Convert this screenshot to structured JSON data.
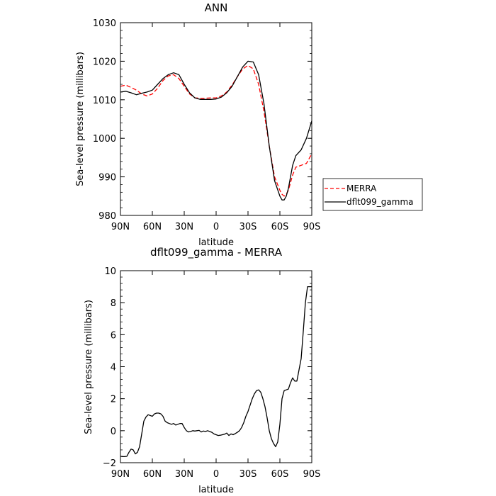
{
  "chart_data": [
    {
      "type": "line",
      "title": "ANN",
      "xlabel": "latitude",
      "ylabel": "Sea-level pressure (millibars)",
      "xlim": [
        90,
        -90
      ],
      "ylim": [
        980,
        1030
      ],
      "x_ticks": [
        {
          "value": 90,
          "label": "90N"
        },
        {
          "value": 60,
          "label": "60N"
        },
        {
          "value": 30,
          "label": "30N"
        },
        {
          "value": 0,
          "label": "0"
        },
        {
          "value": -30,
          "label": "30S"
        },
        {
          "value": -60,
          "label": "60S"
        },
        {
          "value": -90,
          "label": "90S"
        }
      ],
      "y_ticks": [
        {
          "value": 980,
          "label": "980"
        },
        {
          "value": 990,
          "label": "990"
        },
        {
          "value": 1000,
          "label": "1000"
        },
        {
          "value": 1010,
          "label": "1010"
        },
        {
          "value": 1020,
          "label": "1020"
        },
        {
          "value": 1030,
          "label": "1030"
        }
      ],
      "legend_position": "right",
      "series": [
        {
          "name": "MERRA",
          "color": "#ff0000",
          "dashed": true,
          "x": [
            90,
            85,
            80,
            75,
            70,
            65,
            60,
            55,
            50,
            45,
            40,
            35,
            30,
            25,
            20,
            15,
            10,
            5,
            0,
            -5,
            -10,
            -15,
            -20,
            -25,
            -30,
            -35,
            -40,
            -45,
            -50,
            -55,
            -60,
            -62,
            -64,
            -66,
            -68,
            -70,
            -72,
            -75,
            -80,
            -85,
            -90
          ],
          "y": [
            1013.5,
            1013.8,
            1013.2,
            1012.5,
            1011.5,
            1011.0,
            1011.5,
            1013.0,
            1015.0,
            1016.2,
            1016.5,
            1015.5,
            1013.5,
            1011.5,
            1010.5,
            1010.4,
            1010.4,
            1010.5,
            1010.5,
            1011.0,
            1012.0,
            1013.8,
            1016.0,
            1018.0,
            1018.9,
            1018.0,
            1014.0,
            1007.0,
            998.0,
            990.0,
            986.5,
            985.5,
            985.0,
            985.5,
            986.5,
            988.5,
            990.5,
            992.5,
            993.0,
            993.5,
            996.0
          ]
        },
        {
          "name": "dflt099_gamma",
          "color": "#000000",
          "dashed": false,
          "x": [
            90,
            85,
            80,
            75,
            70,
            65,
            60,
            55,
            50,
            45,
            40,
            35,
            30,
            25,
            20,
            15,
            10,
            5,
            0,
            -5,
            -10,
            -15,
            -20,
            -25,
            -30,
            -35,
            -40,
            -45,
            -50,
            -55,
            -60,
            -62,
            -64,
            -66,
            -68,
            -70,
            -72,
            -75,
            -80,
            -85,
            -90
          ],
          "y": [
            1012.0,
            1012.2,
            1011.8,
            1011.3,
            1011.7,
            1012.0,
            1012.5,
            1014.0,
            1015.5,
            1016.5,
            1017.0,
            1016.5,
            1014.0,
            1011.8,
            1010.5,
            1010.1,
            1010.1,
            1010.1,
            1010.2,
            1010.7,
            1011.8,
            1013.5,
            1016.0,
            1018.5,
            1020.0,
            1019.8,
            1016.5,
            1009.0,
            998.0,
            989.0,
            985.0,
            984.0,
            984.0,
            985.0,
            987.0,
            990.0,
            993.0,
            995.5,
            997.0,
            1000.0,
            1004.5
          ]
        }
      ]
    },
    {
      "type": "line",
      "title": "dflt099_gamma - MERRA",
      "xlabel": "latitude",
      "ylabel": "Sea-level pressure (millibars)",
      "xlim": [
        90,
        -90
      ],
      "ylim": [
        -2,
        10
      ],
      "x_ticks": [
        {
          "value": 90,
          "label": "90N"
        },
        {
          "value": 60,
          "label": "60N"
        },
        {
          "value": 30,
          "label": "30N"
        },
        {
          "value": 0,
          "label": "0"
        },
        {
          "value": -30,
          "label": "30S"
        },
        {
          "value": -60,
          "label": "60S"
        },
        {
          "value": -90,
          "label": "90S"
        }
      ],
      "y_ticks": [
        {
          "value": -2,
          "label": "−2"
        },
        {
          "value": 0,
          "label": "0"
        },
        {
          "value": 2,
          "label": "2"
        },
        {
          "value": 4,
          "label": "4"
        },
        {
          "value": 6,
          "label": "6"
        },
        {
          "value": 8,
          "label": "8"
        },
        {
          "value": 10,
          "label": "10"
        }
      ],
      "series": [
        {
          "color": "#000000",
          "dashed": false,
          "x": [
            90,
            88,
            86,
            84,
            82,
            80,
            78,
            76,
            74,
            72,
            70,
            68,
            66,
            64,
            62,
            60,
            58,
            56,
            54,
            52,
            50,
            48,
            46,
            44,
            42,
            40,
            38,
            36,
            34,
            32,
            30,
            28,
            26,
            24,
            22,
            20,
            18,
            16,
            14,
            12,
            10,
            8,
            6,
            4,
            2,
            0,
            -2,
            -4,
            -6,
            -8,
            -10,
            -12,
            -14,
            -16,
            -18,
            -20,
            -22,
            -24,
            -26,
            -28,
            -30,
            -32,
            -34,
            -36,
            -38,
            -40,
            -42,
            -44,
            -46,
            -48,
            -50,
            -52,
            -54,
            -56,
            -58,
            -60,
            -62,
            -64,
            -66,
            -68,
            -70,
            -72,
            -74,
            -76,
            -78,
            -80,
            -82,
            -84,
            -86,
            -88,
            -90
          ],
          "y": [
            -1.6,
            -1.62,
            -1.62,
            -1.6,
            -1.35,
            -1.15,
            -1.2,
            -1.45,
            -1.35,
            -1.0,
            -0.2,
            0.6,
            0.85,
            1.0,
            0.95,
            0.9,
            1.05,
            1.1,
            1.1,
            1.05,
            0.9,
            0.6,
            0.5,
            0.45,
            0.4,
            0.45,
            0.35,
            0.4,
            0.45,
            0.45,
            0.2,
            0.0,
            -0.08,
            -0.05,
            0.0,
            -0.02,
            0.0,
            0.02,
            -0.08,
            -0.02,
            -0.05,
            0.0,
            -0.05,
            -0.1,
            -0.2,
            -0.25,
            -0.3,
            -0.28,
            -0.25,
            -0.22,
            -0.15,
            -0.3,
            -0.2,
            -0.25,
            -0.18,
            -0.1,
            0.0,
            0.2,
            0.5,
            0.9,
            1.2,
            1.6,
            2.0,
            2.3,
            2.5,
            2.55,
            2.4,
            2.0,
            1.5,
            0.8,
            0.0,
            -0.5,
            -0.8,
            -1.0,
            -0.7,
            0.4,
            2.0,
            2.5,
            2.55,
            2.6,
            3.0,
            3.3,
            3.1,
            3.1,
            3.8,
            4.5,
            6.2,
            8.0,
            9.0,
            9.0,
            9.0
          ]
        }
      ]
    }
  ],
  "legend": {
    "entries": [
      "MERRA",
      "dflt099_gamma"
    ]
  }
}
